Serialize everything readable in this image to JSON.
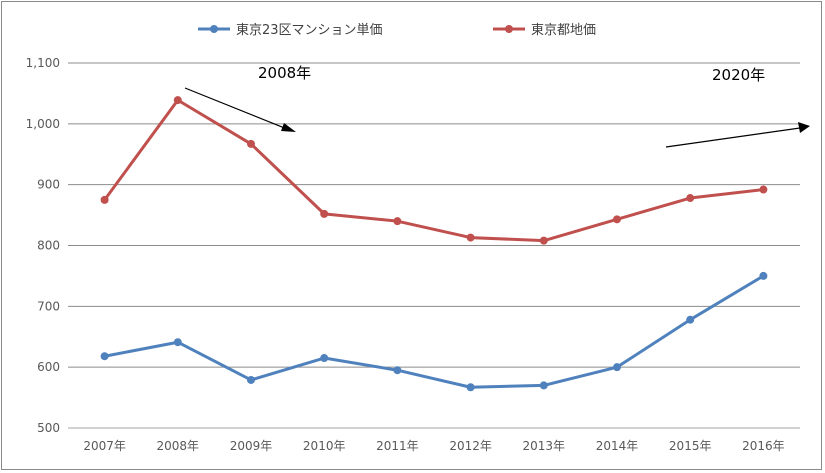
{
  "chart_data": {
    "type": "line",
    "categories": [
      "2007年",
      "2008年",
      "2009年",
      "2010年",
      "2011年",
      "2012年",
      "2013年",
      "2014年",
      "2015年",
      "2016年"
    ],
    "ylim": [
      500,
      1100
    ],
    "yticks": [
      500,
      600,
      700,
      800,
      900,
      1000,
      1100
    ],
    "ytick_labels": [
      "500",
      "600",
      "700",
      "800",
      "900",
      "1,000",
      "1,100"
    ],
    "grid": true,
    "legend_position": "top",
    "series": [
      {
        "name": "東京23区マンション単価",
        "color": "#4f81bd",
        "values": [
          618,
          641,
          579,
          615,
          595,
          567,
          570,
          600,
          678,
          750
        ]
      },
      {
        "name": "東京都地価",
        "color": "#c0504d",
        "values": [
          875,
          1039,
          967,
          852,
          840,
          813,
          808,
          843,
          878,
          892
        ]
      }
    ],
    "annotations": [
      {
        "text": "2008年"
      },
      {
        "text": "2020年"
      }
    ]
  }
}
